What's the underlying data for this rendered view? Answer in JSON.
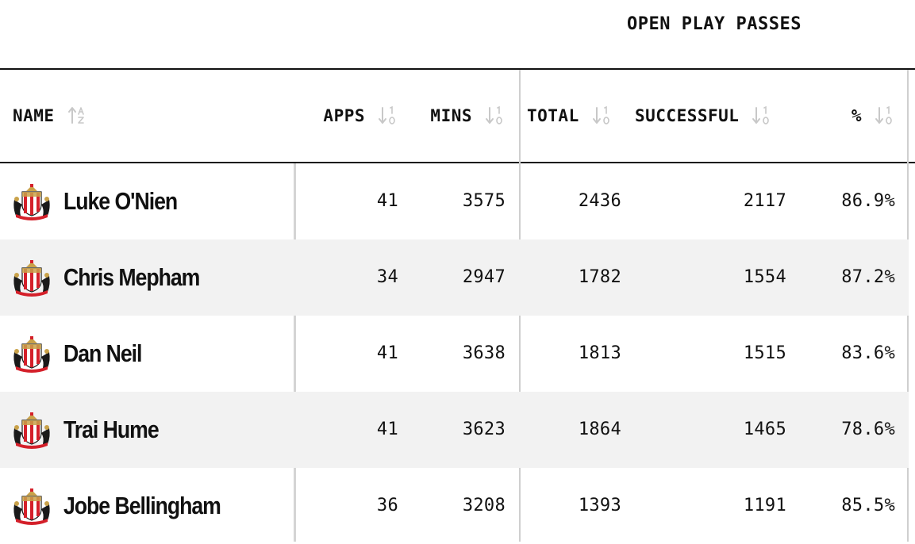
{
  "table": {
    "group_header": "OPEN PLAY PASSES",
    "columns": {
      "name": "NAME",
      "apps": "APPS",
      "mins": "MINS",
      "total": "TOTAL",
      "successful": "SUCCESSFUL",
      "pct": "%"
    },
    "rows": [
      {
        "name": "Luke O'Nien",
        "apps": "41",
        "mins": "3575",
        "total": "2436",
        "successful": "2117",
        "pct": "86.9%"
      },
      {
        "name": "Chris Mepham",
        "apps": "34",
        "mins": "2947",
        "total": "1782",
        "successful": "1554",
        "pct": "87.2%"
      },
      {
        "name": "Dan Neil",
        "apps": "41",
        "mins": "3638",
        "total": "1813",
        "successful": "1515",
        "pct": "83.6%"
      },
      {
        "name": "Trai Hume",
        "apps": "41",
        "mins": "3623",
        "total": "1864",
        "successful": "1465",
        "pct": "78.6%"
      },
      {
        "name": "Jobe Bellingham",
        "apps": "36",
        "mins": "3208",
        "total": "1393",
        "successful": "1191",
        "pct": "85.5%"
      }
    ]
  },
  "icons": {
    "sort_alpha": "sort-alpha-icon",
    "sort_numeric": "sort-numeric-icon",
    "crest": "sunderland-crest-icon"
  },
  "colors": {
    "row_alt": "#f2f2f2",
    "crest_red": "#d4202a",
    "crest_gold": "#c9a24a",
    "crest_black": "#1a1a1a"
  }
}
